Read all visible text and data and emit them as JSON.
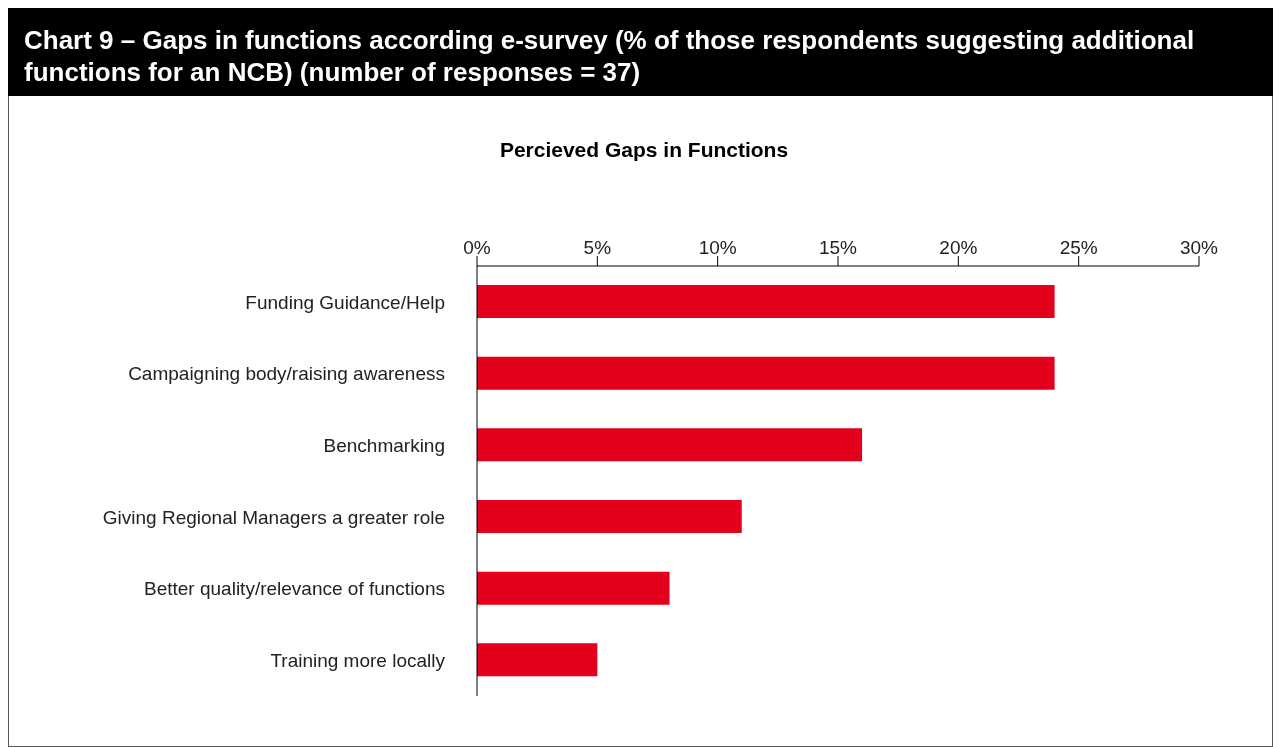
{
  "chart_data": {
    "type": "bar",
    "orientation": "horizontal",
    "title": "Chart 9 – Gaps in functions according e-survey (% of those respondents suggesting additional functions for an NCB) (number of responses = 37)",
    "subtitle": "Percieved Gaps in Functions",
    "categories": [
      "Funding Guidance/Help",
      "Campaigning body/raising awareness",
      "Benchmarking",
      "Giving Regional Managers a greater role",
      "Better quality/relevance of functions",
      "Training more locally"
    ],
    "values": [
      24,
      24,
      16,
      11,
      8,
      5
    ],
    "color": "#e2001a",
    "xlim": [
      0,
      30
    ],
    "xticks": [
      {
        "value": 0,
        "label": "0%"
      },
      {
        "value": 5,
        "label": "5%"
      },
      {
        "value": 10,
        "label": "10%"
      },
      {
        "value": 15,
        "label": "15%"
      },
      {
        "value": 20,
        "label": "20%"
      },
      {
        "value": 25,
        "label": "25%"
      },
      {
        "value": 30,
        "label": "30%"
      }
    ],
    "grid": false,
    "legend": false
  }
}
